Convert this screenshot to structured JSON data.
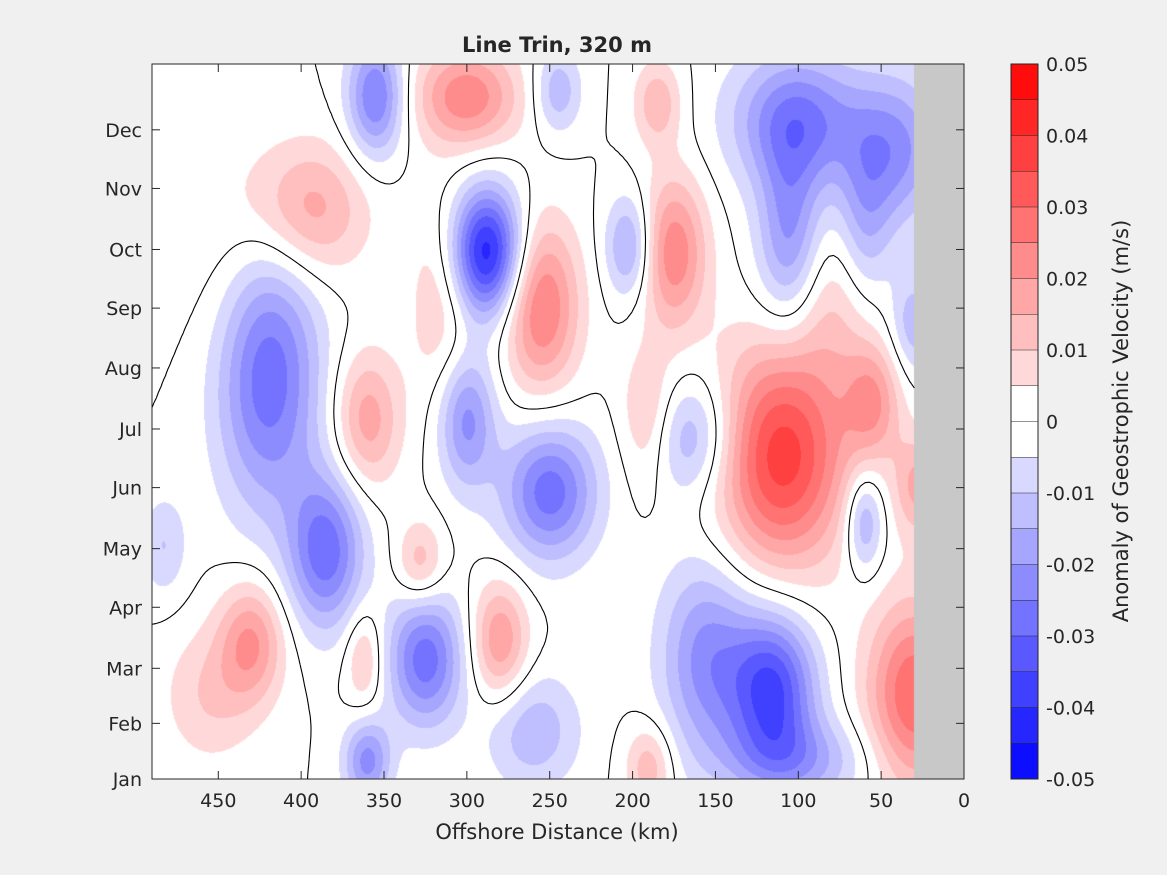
{
  "chart_data": {
    "type": "heatmap",
    "title": "Line Trin, 320 m",
    "xlabel": "Offshore Distance (km)",
    "ylabel": "",
    "xlim": [
      490,
      0
    ],
    "x_reversed": true,
    "xticks": [
      {
        "value": 450,
        "label": "450"
      },
      {
        "value": 400,
        "label": "400"
      },
      {
        "value": 350,
        "label": "350"
      },
      {
        "value": 300,
        "label": "300"
      },
      {
        "value": 250,
        "label": "250"
      },
      {
        "value": 200,
        "label": "200"
      },
      {
        "value": 150,
        "label": "150"
      },
      {
        "value": 100,
        "label": "100"
      },
      {
        "value": 50,
        "label": "50"
      },
      {
        "value": 0,
        "label": "0"
      }
    ],
    "ylim": [
      1,
      12.95
    ],
    "yticks": [
      {
        "value": 1,
        "label": "Jan"
      },
      {
        "value": 1.93,
        "label": "Feb"
      },
      {
        "value": 2.85,
        "label": "Mar"
      },
      {
        "value": 3.87,
        "label": "Apr"
      },
      {
        "value": 4.85,
        "label": "May"
      },
      {
        "value": 5.87,
        "label": "Jun"
      },
      {
        "value": 6.85,
        "label": "Jul"
      },
      {
        "value": 7.87,
        "label": "Aug"
      },
      {
        "value": 8.87,
        "label": "Sep"
      },
      {
        "value": 9.85,
        "label": "Oct"
      },
      {
        "value": 10.87,
        "label": "Nov"
      },
      {
        "value": 11.85,
        "label": "Dec"
      }
    ],
    "no_data_region": {
      "x_from": 30,
      "x_to": 0,
      "color": "#c8c8c8"
    },
    "colorbar": {
      "label": "Anomaly of Geostrophic Velocity (m/s)",
      "clim": [
        -0.05,
        0.05
      ],
      "levels": [
        -0.05,
        -0.045,
        -0.04,
        -0.035,
        -0.03,
        -0.025,
        -0.02,
        -0.015,
        -0.01,
        -0.005,
        0,
        0.005,
        0.01,
        0.015,
        0.02,
        0.025,
        0.03,
        0.035,
        0.04,
        0.045,
        0.05
      ],
      "ticks": [
        {
          "value": 0.05,
          "label": "0.05"
        },
        {
          "value": 0.04,
          "label": "0.04"
        },
        {
          "value": 0.03,
          "label": "0.03"
        },
        {
          "value": 0.02,
          "label": "0.02"
        },
        {
          "value": 0.01,
          "label": "0.01"
        },
        {
          "value": 0,
          "label": "0"
        },
        {
          "value": -0.01,
          "label": "-0.01"
        },
        {
          "value": -0.02,
          "label": "-0.02"
        },
        {
          "value": -0.03,
          "label": "-0.03"
        },
        {
          "value": -0.04,
          "label": "-0.04"
        },
        {
          "value": -0.05,
          "label": "-0.05"
        }
      ],
      "colors": {
        "negative_max": "#0000ff",
        "zero": "#ffffff",
        "positive_max": "#ff0000"
      }
    },
    "zero_contour_color": "#000000",
    "features": [
      {
        "x": 110,
        "y": 6.4,
        "amp": 0.038,
        "sx": 28,
        "sy": 1.3
      },
      {
        "x": 255,
        "y": 8.9,
        "amp": 0.026,
        "sx": 16,
        "sy": 1.0
      },
      {
        "x": 288,
        "y": 9.8,
        "amp": -0.044,
        "sx": 15,
        "sy": 0.75
      },
      {
        "x": 115,
        "y": 2.5,
        "amp": -0.035,
        "sx": 18,
        "sy": 0.9
      },
      {
        "x": 30,
        "y": 2.4,
        "amp": 0.03,
        "sx": 20,
        "sy": 1.1
      },
      {
        "x": 420,
        "y": 7.8,
        "amp": -0.03,
        "sx": 22,
        "sy": 1.6
      },
      {
        "x": 250,
        "y": 5.8,
        "amp": -0.028,
        "sx": 20,
        "sy": 0.8
      },
      {
        "x": 385,
        "y": 4.8,
        "amp": -0.028,
        "sx": 16,
        "sy": 0.9
      },
      {
        "x": 325,
        "y": 3.0,
        "amp": -0.028,
        "sx": 16,
        "sy": 0.8
      },
      {
        "x": 300,
        "y": 7.0,
        "amp": -0.022,
        "sx": 12,
        "sy": 0.8
      },
      {
        "x": 165,
        "y": 6.7,
        "amp": -0.018,
        "sx": 20,
        "sy": 0.7
      },
      {
        "x": 175,
        "y": 9.8,
        "amp": 0.024,
        "sx": 14,
        "sy": 0.9
      },
      {
        "x": 202,
        "y": 9.9,
        "amp": -0.018,
        "sx": 10,
        "sy": 0.6
      },
      {
        "x": 395,
        "y": 10.5,
        "amp": 0.018,
        "sx": 24,
        "sy": 0.8
      },
      {
        "x": 280,
        "y": 3.3,
        "amp": 0.02,
        "sx": 12,
        "sy": 0.7
      },
      {
        "x": 430,
        "y": 3.3,
        "amp": 0.02,
        "sx": 14,
        "sy": 0.7
      },
      {
        "x": 100,
        "y": 12.0,
        "amp": -0.026,
        "sx": 28,
        "sy": 0.8
      },
      {
        "x": 40,
        "y": 11.5,
        "amp": -0.02,
        "sx": 20,
        "sy": 0.9
      },
      {
        "x": 105,
        "y": 10.0,
        "amp": -0.022,
        "sx": 14,
        "sy": 1.1
      },
      {
        "x": 355,
        "y": 12.4,
        "amp": -0.026,
        "sx": 12,
        "sy": 0.7
      },
      {
        "x": 300,
        "y": 12.4,
        "amp": 0.024,
        "sx": 22,
        "sy": 0.6
      },
      {
        "x": 245,
        "y": 12.5,
        "amp": -0.014,
        "sx": 10,
        "sy": 0.5
      },
      {
        "x": 185,
        "y": 12.3,
        "amp": 0.014,
        "sx": 10,
        "sy": 0.5
      },
      {
        "x": 360,
        "y": 7.0,
        "amp": 0.018,
        "sx": 14,
        "sy": 0.8
      },
      {
        "x": 315,
        "y": 9.0,
        "amp": 0.01,
        "sx": 14,
        "sy": 1.2
      },
      {
        "x": 190,
        "y": 7.0,
        "amp": 0.014,
        "sx": 12,
        "sy": 0.8
      },
      {
        "x": 55,
        "y": 7.3,
        "amp": 0.018,
        "sx": 12,
        "sy": 0.7
      },
      {
        "x": 28,
        "y": 5.9,
        "amp": 0.016,
        "sx": 10,
        "sy": 0.6
      },
      {
        "x": 60,
        "y": 5.3,
        "amp": -0.018,
        "sx": 8,
        "sy": 0.6
      },
      {
        "x": 30,
        "y": 8.6,
        "amp": -0.014,
        "sx": 10,
        "sy": 0.6
      },
      {
        "x": 155,
        "y": 3.0,
        "amp": -0.022,
        "sx": 20,
        "sy": 1.2
      },
      {
        "x": 190,
        "y": 1.2,
        "amp": 0.014,
        "sx": 10,
        "sy": 0.5
      },
      {
        "x": 100,
        "y": 1.3,
        "amp": -0.016,
        "sx": 30,
        "sy": 0.5
      },
      {
        "x": 360,
        "y": 1.3,
        "amp": -0.022,
        "sx": 10,
        "sy": 0.5
      },
      {
        "x": 260,
        "y": 1.8,
        "amp": -0.014,
        "sx": 20,
        "sy": 0.7
      },
      {
        "x": 455,
        "y": 2.4,
        "amp": 0.01,
        "sx": 20,
        "sy": 0.8
      },
      {
        "x": 483,
        "y": 4.9,
        "amp": -0.01,
        "sx": 10,
        "sy": 0.6
      },
      {
        "x": 328,
        "y": 4.6,
        "amp": 0.014,
        "sx": 10,
        "sy": 0.5
      },
      {
        "x": 362,
        "y": 3.0,
        "amp": 0.012,
        "sx": 8,
        "sy": 0.6
      },
      {
        "x": 80,
        "y": 9.0,
        "amp": 0.01,
        "sx": 20,
        "sy": 1.0
      },
      {
        "x": 60,
        "y": 10.2,
        "amp": -0.014,
        "sx": 12,
        "sy": 1.0
      },
      {
        "x": 440,
        "y": 9.8,
        "amp": 0.006,
        "sx": 25,
        "sy": 1.5
      }
    ]
  }
}
